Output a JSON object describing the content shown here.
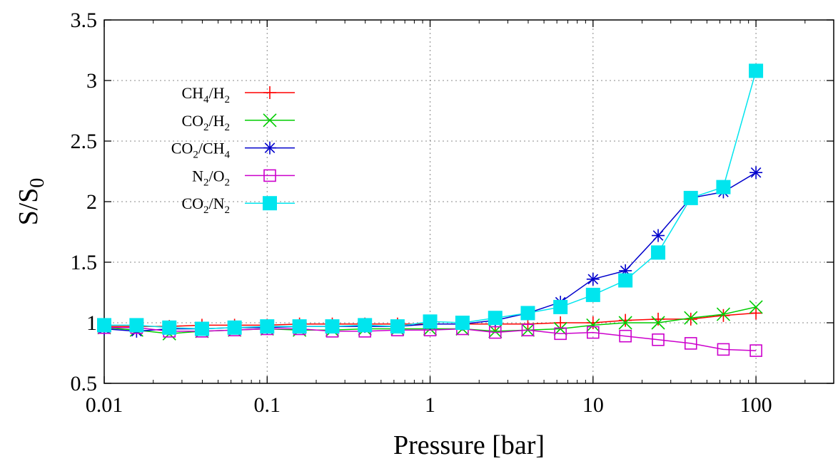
{
  "chart_data": {
    "type": "line",
    "xlabel": "Pressure [bar]",
    "ylabel": {
      "main": "S/S",
      "sub": "0"
    },
    "x_scale": "log",
    "xlim": [
      0.01,
      300
    ],
    "ylim": [
      0.5,
      3.5
    ],
    "grid": true,
    "legend_position": "top-left",
    "x_ticks": [
      {
        "value": 0.01,
        "label": "0.01"
      },
      {
        "value": 0.1,
        "label": "0.1"
      },
      {
        "value": 1,
        "label": "1"
      },
      {
        "value": 10,
        "label": "10"
      },
      {
        "value": 100,
        "label": "100"
      }
    ],
    "y_ticks": [
      {
        "value": 0.5,
        "label": "0.5"
      },
      {
        "value": 1,
        "label": "1"
      },
      {
        "value": 1.5,
        "label": "1.5"
      },
      {
        "value": 2,
        "label": "2"
      },
      {
        "value": 2.5,
        "label": "2.5"
      },
      {
        "value": 3,
        "label": "3"
      },
      {
        "value": 3.5,
        "label": "3.5"
      }
    ],
    "x": [
      0.01,
      0.0158,
      0.0251,
      0.0398,
      0.0631,
      0.1,
      0.158,
      0.251,
      0.398,
      0.631,
      1,
      1.58,
      2.51,
      3.98,
      6.31,
      10,
      15.8,
      25.1,
      39.8,
      63.1,
      100
    ],
    "series": [
      {
        "name": "CH4/H2",
        "legend": [
          {
            "t": "CH"
          },
          {
            "t": "4",
            "sub": true
          },
          {
            "t": "/H"
          },
          {
            "t": "2",
            "sub": true
          }
        ],
        "color": "#ff0000",
        "marker": "plus",
        "values": [
          0.97,
          0.97,
          0.97,
          0.98,
          0.98,
          0.98,
          0.99,
          0.99,
          0.99,
          0.99,
          0.99,
          0.99,
          0.99,
          0.99,
          1.0,
          1.0,
          1.02,
          1.03,
          1.03,
          1.06,
          1.08
        ]
      },
      {
        "name": "CO2/H2",
        "legend": [
          {
            "t": "CO"
          },
          {
            "t": "2",
            "sub": true
          },
          {
            "t": "/H"
          },
          {
            "t": "2",
            "sub": true
          }
        ],
        "color": "#00cc00",
        "marker": "cross",
        "values": [
          0.96,
          0.94,
          0.91,
          0.93,
          0.94,
          0.95,
          0.94,
          0.94,
          0.95,
          0.95,
          0.95,
          0.95,
          0.93,
          0.94,
          0.95,
          0.98,
          1.0,
          1.0,
          1.04,
          1.07,
          1.13
        ]
      },
      {
        "name": "CO2/CH4",
        "legend": [
          {
            "t": "CO"
          },
          {
            "t": "2",
            "sub": true
          },
          {
            "t": "/CH"
          },
          {
            "t": "4",
            "sub": true
          }
        ],
        "color": "#0000cc",
        "marker": "star",
        "values": [
          0.95,
          0.93,
          0.95,
          0.95,
          0.96,
          0.96,
          0.97,
          0.97,
          0.97,
          0.97,
          0.99,
          0.99,
          1.02,
          1.08,
          1.17,
          1.36,
          1.43,
          1.72,
          2.03,
          2.08,
          2.24
        ]
      },
      {
        "name": "N2/O2",
        "legend": [
          {
            "t": "N"
          },
          {
            "t": "2",
            "sub": true
          },
          {
            "t": "/O"
          },
          {
            "t": "2",
            "sub": true
          }
        ],
        "color": "#cc00cc",
        "marker": "open-square",
        "values": [
          0.96,
          0.96,
          0.93,
          0.93,
          0.94,
          0.95,
          0.95,
          0.93,
          0.93,
          0.94,
          0.94,
          0.95,
          0.92,
          0.94,
          0.91,
          0.92,
          0.89,
          0.86,
          0.83,
          0.78,
          0.77
        ]
      },
      {
        "name": "CO2/N2",
        "legend": [
          {
            "t": "CO"
          },
          {
            "t": "2",
            "sub": true
          },
          {
            "t": "/N"
          },
          {
            "t": "2",
            "sub": true
          }
        ],
        "color": "#00e5ee",
        "marker": "filled-square",
        "values": [
          0.98,
          0.98,
          0.96,
          0.95,
          0.96,
          0.97,
          0.97,
          0.97,
          0.98,
          0.97,
          1.01,
          1.0,
          1.04,
          1.08,
          1.13,
          1.23,
          1.35,
          1.58,
          2.03,
          2.12,
          3.08
        ]
      }
    ]
  }
}
